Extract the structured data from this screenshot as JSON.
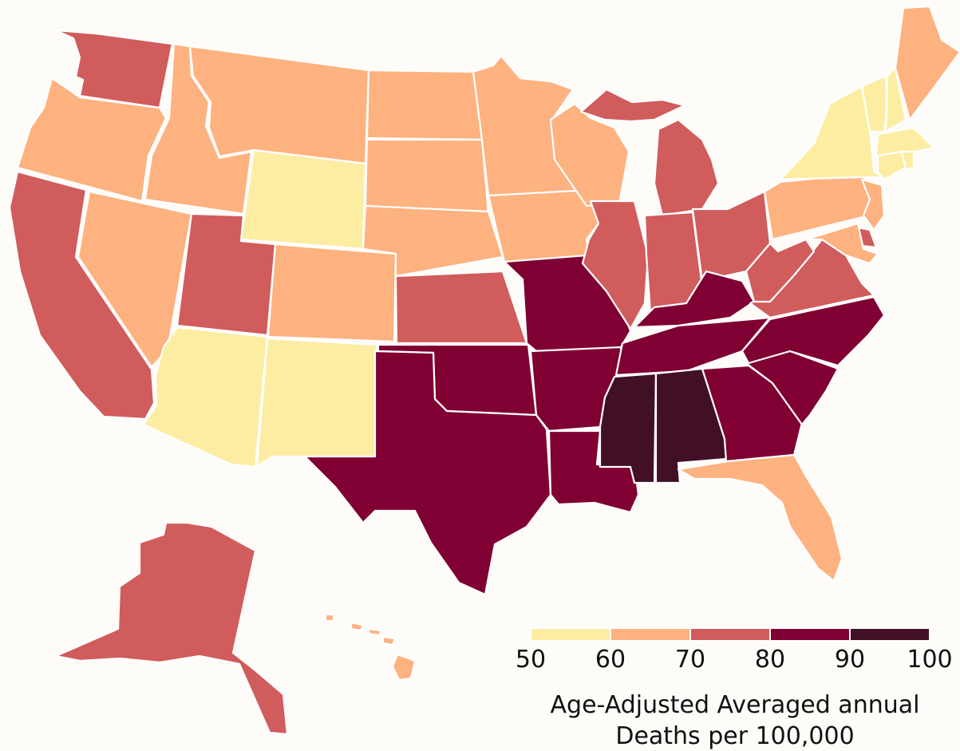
{
  "legend": {
    "bins": [
      {
        "min": 50,
        "max": 60,
        "color": "#fdeda3"
      },
      {
        "min": 60,
        "max": 70,
        "color": "#fdb27f"
      },
      {
        "min": 70,
        "max": 80,
        "color": "#d15c5c"
      },
      {
        "min": 80,
        "max": 90,
        "color": "#800033"
      },
      {
        "min": 90,
        "max": 100,
        "color": "#421026"
      }
    ],
    "ticks": [
      "50",
      "60",
      "70",
      "80",
      "90",
      "100"
    ],
    "title_line1": "Age-Adjusted Averaged annual",
    "title_line2": "Deaths per 100,000"
  },
  "states": [
    {
      "id": "WA",
      "bin": 2
    },
    {
      "id": "OR",
      "bin": 1
    },
    {
      "id": "CA",
      "bin": 2
    },
    {
      "id": "NV",
      "bin": 1
    },
    {
      "id": "ID",
      "bin": 1
    },
    {
      "id": "MT",
      "bin": 1
    },
    {
      "id": "WY",
      "bin": 0
    },
    {
      "id": "UT",
      "bin": 2
    },
    {
      "id": "CO",
      "bin": 1
    },
    {
      "id": "AZ",
      "bin": 0
    },
    {
      "id": "NM",
      "bin": 0
    },
    {
      "id": "ND",
      "bin": 1
    },
    {
      "id": "SD",
      "bin": 1
    },
    {
      "id": "NE",
      "bin": 1
    },
    {
      "id": "KS",
      "bin": 2
    },
    {
      "id": "OK",
      "bin": 3
    },
    {
      "id": "TX",
      "bin": 3
    },
    {
      "id": "MN",
      "bin": 1
    },
    {
      "id": "IA",
      "bin": 1
    },
    {
      "id": "MO",
      "bin": 3
    },
    {
      "id": "AR",
      "bin": 3
    },
    {
      "id": "LA",
      "bin": 3
    },
    {
      "id": "WI",
      "bin": 1
    },
    {
      "id": "IL",
      "bin": 2
    },
    {
      "id": "MI",
      "bin": 2
    },
    {
      "id": "IN",
      "bin": 2
    },
    {
      "id": "OH",
      "bin": 2
    },
    {
      "id": "KY",
      "bin": 3
    },
    {
      "id": "TN",
      "bin": 3
    },
    {
      "id": "MS",
      "bin": 4
    },
    {
      "id": "AL",
      "bin": 4
    },
    {
      "id": "GA",
      "bin": 3
    },
    {
      "id": "FL",
      "bin": 1
    },
    {
      "id": "SC",
      "bin": 3
    },
    {
      "id": "NC",
      "bin": 3
    },
    {
      "id": "VA",
      "bin": 2
    },
    {
      "id": "WV",
      "bin": 2
    },
    {
      "id": "PA",
      "bin": 1
    },
    {
      "id": "NY",
      "bin": 0
    },
    {
      "id": "VT",
      "bin": 0
    },
    {
      "id": "NH",
      "bin": 0
    },
    {
      "id": "ME",
      "bin": 1
    },
    {
      "id": "MA",
      "bin": 0
    },
    {
      "id": "CT",
      "bin": 0
    },
    {
      "id": "RI",
      "bin": 0
    },
    {
      "id": "NJ",
      "bin": 1
    },
    {
      "id": "DE",
      "bin": 2
    },
    {
      "id": "MD",
      "bin": 1
    },
    {
      "id": "AK",
      "bin": 2
    },
    {
      "id": "HI",
      "bin": 1
    }
  ]
}
